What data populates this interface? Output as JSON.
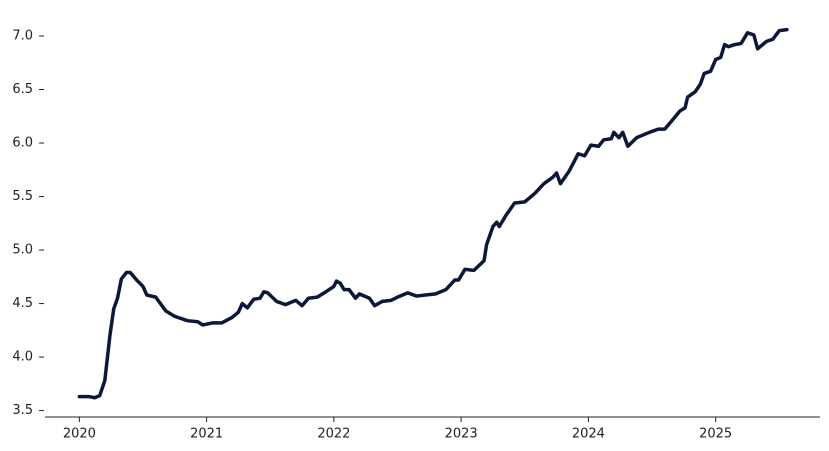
{
  "chart_data": {
    "type": "line",
    "color": "#0c1838",
    "x": [
      2020.0,
      2020.08,
      2020.12,
      2020.16,
      2020.2,
      2020.24,
      2020.27,
      2020.3,
      2020.33,
      2020.37,
      2020.4,
      2020.45,
      2020.5,
      2020.53,
      2020.6,
      2020.68,
      2020.75,
      2020.85,
      2020.93,
      2020.97,
      2021.05,
      2021.12,
      2021.2,
      2021.25,
      2021.28,
      2021.32,
      2021.37,
      2021.42,
      2021.45,
      2021.48,
      2021.55,
      2021.62,
      2021.7,
      2021.75,
      2021.8,
      2021.87,
      2021.95,
      2022.0,
      2022.02,
      2022.05,
      2022.08,
      2022.12,
      2022.17,
      2022.2,
      2022.28,
      2022.32,
      2022.38,
      2022.45,
      2022.5,
      2022.58,
      2022.65,
      2022.72,
      2022.8,
      2022.88,
      2022.95,
      2022.98,
      2023.03,
      2023.1,
      2023.18,
      2023.2,
      2023.25,
      2023.28,
      2023.3,
      2023.35,
      2023.42,
      2023.5,
      2023.58,
      2023.65,
      2023.72,
      2023.75,
      2023.78,
      2023.85,
      2023.92,
      2023.97,
      2024.02,
      2024.08,
      2024.12,
      2024.18,
      2024.2,
      2024.24,
      2024.27,
      2024.31,
      2024.38,
      2024.48,
      2024.55,
      2024.6,
      2024.65,
      2024.72,
      2024.76,
      2024.78,
      2024.84,
      2024.88,
      2024.91,
      2024.96,
      2025.0,
      2025.04,
      2025.07,
      2025.1,
      2025.15,
      2025.2,
      2025.25,
      2025.3,
      2025.33,
      2025.4,
      2025.45,
      2025.5,
      2025.56
    ],
    "values": [
      3.63,
      3.63,
      3.62,
      3.64,
      3.78,
      4.2,
      4.45,
      4.55,
      4.73,
      4.79,
      4.79,
      4.72,
      4.66,
      4.58,
      4.56,
      4.43,
      4.38,
      4.34,
      4.33,
      4.3,
      4.32,
      4.32,
      4.37,
      4.42,
      4.5,
      4.46,
      4.54,
      4.55,
      4.61,
      4.6,
      4.52,
      4.49,
      4.53,
      4.48,
      4.55,
      4.56,
      4.62,
      4.66,
      4.71,
      4.69,
      4.63,
      4.63,
      4.55,
      4.59,
      4.55,
      4.48,
      4.52,
      4.53,
      4.56,
      4.6,
      4.57,
      4.58,
      4.59,
      4.63,
      4.72,
      4.72,
      4.82,
      4.81,
      4.9,
      5.05,
      5.22,
      5.26,
      5.22,
      5.32,
      5.44,
      5.45,
      5.53,
      5.62,
      5.68,
      5.72,
      5.62,
      5.74,
      5.9,
      5.88,
      5.98,
      5.97,
      6.03,
      6.04,
      6.1,
      6.05,
      6.1,
      5.97,
      6.05,
      6.1,
      6.13,
      6.13,
      6.2,
      6.3,
      6.33,
      6.43,
      6.48,
      6.55,
      6.65,
      6.67,
      6.78,
      6.8,
      6.92,
      6.9,
      6.92,
      6.93,
      7.03,
      7.01,
      6.88,
      6.95,
      6.97,
      7.05,
      7.06
    ],
    "xlim": [
      2019.73,
      2025.82
    ],
    "xticks": [
      2020,
      2021,
      2022,
      2023,
      2024,
      2025
    ],
    "ylim": [
      3.44,
      7.2
    ],
    "yticks": [
      {
        "value": 3.5,
        "label": "3.5"
      },
      {
        "value": 4,
        "label": "4.0"
      },
      4.5,
      {
        "value": 5,
        "label": "5.0"
      },
      5.5,
      {
        "value": 6,
        "label": "6.0"
      },
      6.5,
      {
        "value": 7,
        "label": "7.0"
      }
    ]
  }
}
